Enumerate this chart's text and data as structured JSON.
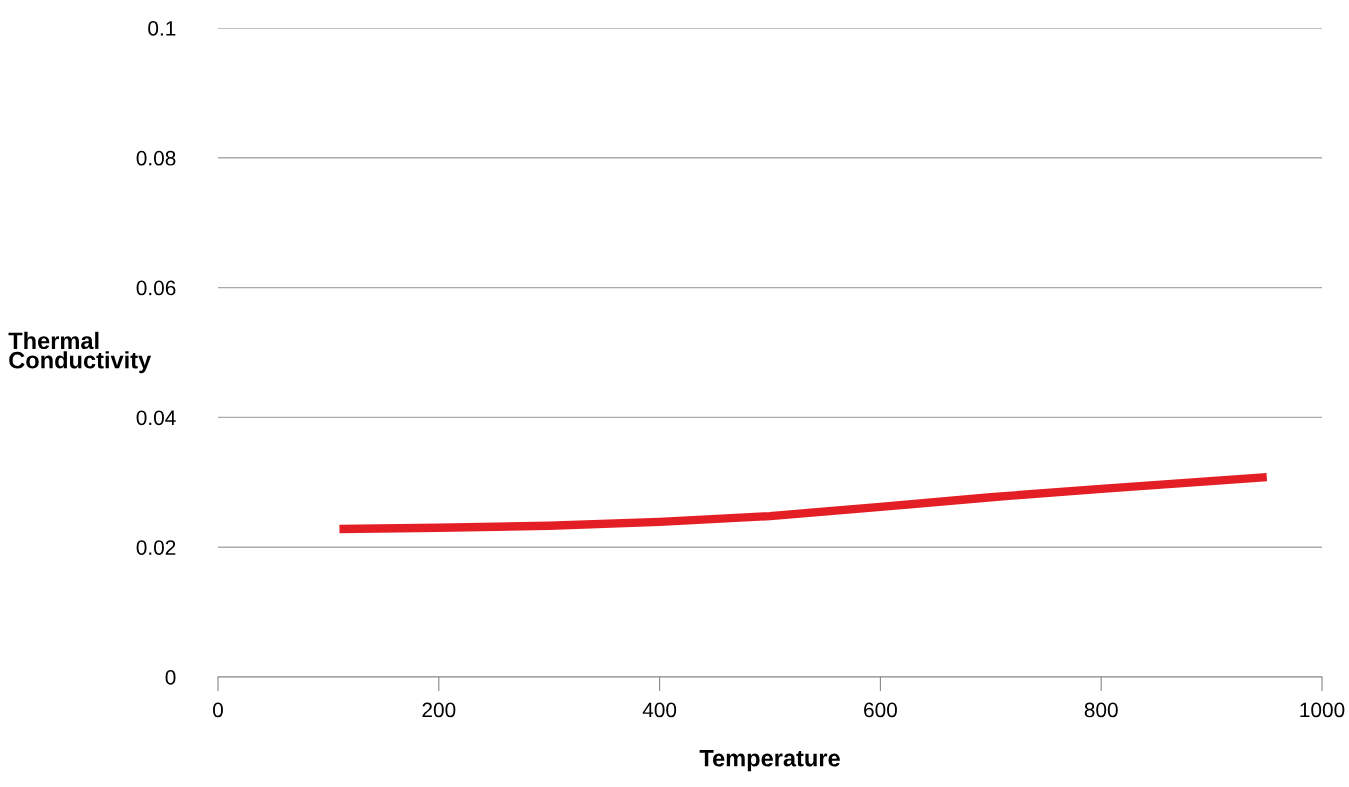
{
  "chart_data": {
    "type": "line",
    "xlabel": "Temperature",
    "ylabel": "Thermal\nConductivity",
    "x": [
      110,
      200,
      300,
      400,
      500,
      600,
      700,
      800,
      950
    ],
    "series": [
      {
        "color": "#e31e24",
        "values": [
          0.0228,
          0.023,
          0.0233,
          0.0239,
          0.0248,
          0.0262,
          0.0277,
          0.029,
          0.0308
        ]
      }
    ],
    "xlim": [
      0,
      1000
    ],
    "xticks": [
      0,
      200,
      400,
      600,
      800,
      1000
    ],
    "ylim": [
      0,
      0.1
    ],
    "yticks": [
      0,
      0.02,
      0.04,
      0.06,
      0.08,
      0.1
    ],
    "grid": "y",
    "marker": "none",
    "line_style": "solid"
  }
}
